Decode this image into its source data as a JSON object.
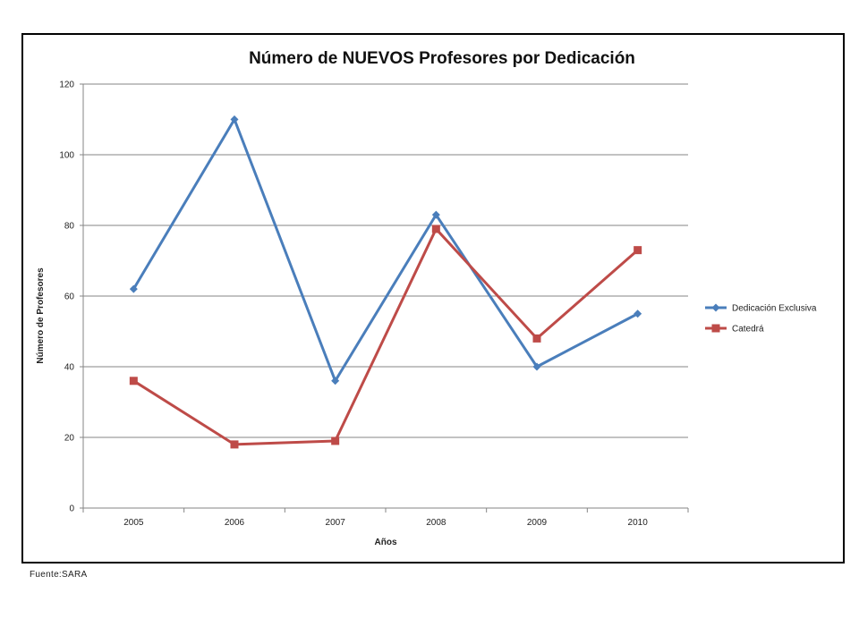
{
  "source_note": "Fuente:SARA",
  "colors": {
    "series_1": "#4A7EBB",
    "series_2": "#BE4B48",
    "grid": "#868686",
    "axis": "#868686"
  },
  "chart_data": {
    "type": "line",
    "title": "Número de NUEVOS  Profesores por Dedicación",
    "xlabel": "Años",
    "ylabel": "Número de Profesores",
    "categories": [
      "2005",
      "2006",
      "2007",
      "2008",
      "2009",
      "2010"
    ],
    "ylim": [
      0,
      120
    ],
    "yticks": [
      0,
      20,
      40,
      60,
      80,
      100,
      120
    ],
    "grid": true,
    "legend_position": "right",
    "series": [
      {
        "name": "Dedicación Exclusiva",
        "marker": "diamond",
        "color": "#4A7EBB",
        "values": [
          62,
          110,
          36,
          83,
          40,
          55
        ]
      },
      {
        "name": "Catedrá",
        "marker": "square",
        "color": "#BE4B48",
        "values": [
          36,
          18,
          19,
          79,
          48,
          73
        ]
      }
    ]
  }
}
